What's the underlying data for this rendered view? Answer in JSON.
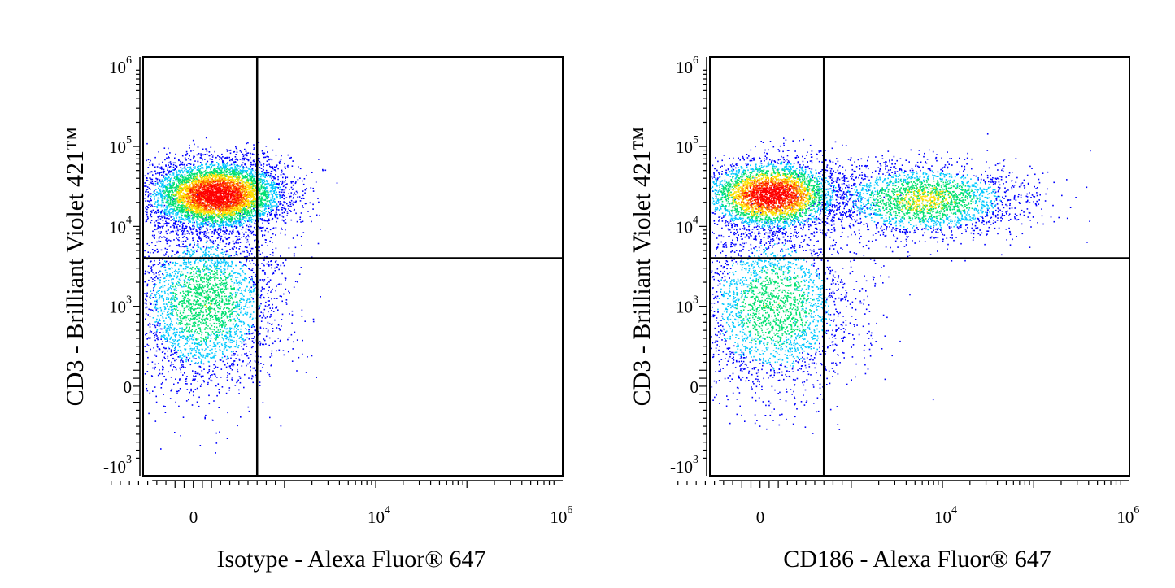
{
  "chart_data": [
    {
      "type": "scatter",
      "subtype": "flow-cytometry-density-dot-plot",
      "xlabel": "Isotype - Alexa Fluor® 647",
      "ylabel": "CD3 - Brilliant Violet 421™",
      "x_scale": "biexponential",
      "y_scale": "biexponential",
      "xlim": [
        -1000,
        1000000
      ],
      "ylim": [
        -1000,
        1000000
      ],
      "x_tick_labels": [
        {
          "value": 0,
          "base": "0",
          "exp": ""
        },
        {
          "value": 10000,
          "base": "10",
          "exp": "4"
        },
        {
          "value": 1000000,
          "base": "10",
          "exp": "6"
        }
      ],
      "y_tick_labels": [
        {
          "value": 1000000,
          "base": "10",
          "exp": "6"
        },
        {
          "value": 100000,
          "base": "10",
          "exp": "5"
        },
        {
          "value": 10000,
          "base": "10",
          "exp": "4"
        },
        {
          "value": 1000,
          "base": "10",
          "exp": "3"
        },
        {
          "value": 0,
          "base": "0",
          "exp": ""
        },
        {
          "value": -1000,
          "base": "-10",
          "exp": "3"
        }
      ],
      "gate": {
        "x": 700,
        "y": 4000
      },
      "grid": false,
      "populations": [
        {
          "x_center": 250,
          "y_center": 25000,
          "share": 0.64
        },
        {
          "x_center": 120,
          "y_center": 1100,
          "share": 0.36
        }
      ],
      "colors": [
        "#0000ff",
        "#00c8ff",
        "#00e070",
        "#ffe000",
        "#ff6000",
        "#ff0000"
      ]
    },
    {
      "type": "scatter",
      "subtype": "flow-cytometry-density-dot-plot",
      "xlabel": "CD186 - Alexa Fluor® 647",
      "ylabel": "CD3 - Brilliant Violet 421™",
      "x_scale": "biexponential",
      "y_scale": "biexponential",
      "xlim": [
        -1000,
        1000000
      ],
      "ylim": [
        -1000,
        1000000
      ],
      "x_tick_labels": [
        {
          "value": 0,
          "base": "0",
          "exp": ""
        },
        {
          "value": 10000,
          "base": "10",
          "exp": "4"
        },
        {
          "value": 1000000,
          "base": "10",
          "exp": "6"
        }
      ],
      "y_tick_labels": [
        {
          "value": 1000000,
          "base": "10",
          "exp": "6"
        },
        {
          "value": 100000,
          "base": "10",
          "exp": "5"
        },
        {
          "value": 10000,
          "base": "10",
          "exp": "4"
        },
        {
          "value": 1000,
          "base": "10",
          "exp": "3"
        },
        {
          "value": 0,
          "base": "0",
          "exp": ""
        },
        {
          "value": -1000,
          "base": "-10",
          "exp": "3"
        }
      ],
      "gate": {
        "x": 700,
        "y": 4000
      },
      "grid": false,
      "populations": [
        {
          "x_center": 120,
          "y_center": 25000,
          "share": 0.42
        },
        {
          "x_center": 6000,
          "y_center": 22000,
          "share": 0.28
        },
        {
          "x_center": 150,
          "y_center": 1000,
          "share": 0.3
        }
      ],
      "colors": [
        "#0000ff",
        "#00c8ff",
        "#00e070",
        "#ffe000",
        "#ff6000",
        "#ff0000"
      ]
    }
  ]
}
